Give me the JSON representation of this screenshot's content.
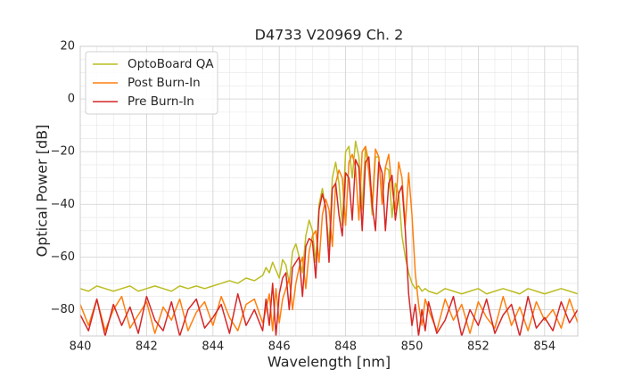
{
  "chart_data": {
    "type": "line",
    "title": "D4733 V20969 Ch. 2",
    "xlabel": "Wavelength [nm]",
    "ylabel": "Optical Power [dB]",
    "xlim": [
      840,
      855
    ],
    "xticks": [
      840,
      842,
      844,
      846,
      848,
      850,
      852,
      854
    ],
    "ylim": [
      -90,
      20
    ],
    "yticks": [
      -80,
      -60,
      -40,
      -20,
      0,
      20
    ],
    "grid": true,
    "minor_grid": true,
    "legend": "upper left",
    "x": [
      840,
      840.25,
      840.5,
      840.75,
      841,
      841.25,
      841.5,
      841.75,
      842,
      842.25,
      842.5,
      842.75,
      843,
      843.25,
      843.5,
      843.75,
      844,
      844.25,
      844.5,
      844.75,
      845,
      845.25,
      845.5,
      845.6,
      845.7,
      845.8,
      845.9,
      846.0,
      846.1,
      846.2,
      846.3,
      846.4,
      846.5,
      846.6,
      846.7,
      846.8,
      846.9,
      847.0,
      847.1,
      847.2,
      847.3,
      847.4,
      847.5,
      847.6,
      847.7,
      847.8,
      847.9,
      848.0,
      848.1,
      848.2,
      848.3,
      848.4,
      848.5,
      848.6,
      848.7,
      848.8,
      848.9,
      849.0,
      849.1,
      849.2,
      849.3,
      849.4,
      849.5,
      849.6,
      849.7,
      849.8,
      849.9,
      850.0,
      850.1,
      850.2,
      850.3,
      850.4,
      850.5,
      850.75,
      851,
      851.25,
      851.5,
      851.75,
      852,
      852.25,
      852.5,
      852.75,
      853,
      853.25,
      853.5,
      853.75,
      854,
      854.25,
      854.5,
      854.75,
      855
    ],
    "series": [
      {
        "name": "OptoBoard QA",
        "color": "#bcbd22",
        "values": [
          -72,
          -73,
          -71,
          -72,
          -73,
          -72,
          -71,
          -73,
          -72,
          -71,
          -72,
          -73,
          -71,
          -72,
          -71,
          -72,
          -71,
          -70,
          -69,
          -70,
          -68,
          -69,
          -67,
          -64,
          -66,
          -62,
          -65,
          -68,
          -61,
          -63,
          -70,
          -58,
          -55,
          -60,
          -66,
          -52,
          -46,
          -50,
          -62,
          -40,
          -34,
          -42,
          -56,
          -30,
          -24,
          -32,
          -48,
          -20,
          -18,
          -30,
          -16,
          -22,
          -42,
          -18,
          -24,
          -44,
          -22,
          -22,
          -38,
          -26,
          -27,
          -45,
          -32,
          -36,
          -52,
          -60,
          -66,
          -70,
          -72,
          -71,
          -73,
          -72,
          -73,
          -74,
          -72,
          -73,
          -74,
          -73,
          -72,
          -74,
          -73,
          -72,
          -73,
          -74,
          -72,
          -73,
          -74,
          -73,
          -72,
          -73,
          -74
        ]
      },
      {
        "name": "Post Burn-In",
        "color": "#ff7f0e",
        "values": [
          -78,
          -86,
          -76,
          -88,
          -80,
          -75,
          -87,
          -82,
          -77,
          -89,
          -79,
          -84,
          -76,
          -88,
          -81,
          -77,
          -86,
          -75,
          -83,
          -88,
          -78,
          -76,
          -85,
          -80,
          -74,
          -88,
          -72,
          -85,
          -76,
          -72,
          -68,
          -80,
          -70,
          -64,
          -60,
          -72,
          -58,
          -52,
          -50,
          -62,
          -44,
          -38,
          -42,
          -56,
          -32,
          -27,
          -30,
          -48,
          -24,
          -21,
          -26,
          -46,
          -20,
          -18,
          -28,
          -42,
          -19,
          -22,
          -40,
          -26,
          -21,
          -34,
          -42,
          -24,
          -30,
          -48,
          -28,
          -44,
          -66,
          -78,
          -86,
          -76,
          -80,
          -88,
          -76,
          -84,
          -78,
          -89,
          -77,
          -83,
          -87,
          -75,
          -86,
          -79,
          -88,
          -77,
          -84,
          -80,
          -87,
          -76,
          -85
        ]
      },
      {
        "name": "Pre Burn-In",
        "color": "#d62728",
        "values": [
          -82,
          -88,
          -76,
          -90,
          -78,
          -86,
          -79,
          -89,
          -75,
          -84,
          -88,
          -77,
          -90,
          -80,
          -76,
          -87,
          -83,
          -78,
          -89,
          -74,
          -86,
          -80,
          -88,
          -76,
          -86,
          -70,
          -90,
          -74,
          -68,
          -66,
          -80,
          -64,
          -62,
          -60,
          -75,
          -56,
          -53,
          -54,
          -68,
          -42,
          -36,
          -41,
          -62,
          -34,
          -32,
          -44,
          -52,
          -28,
          -30,
          -46,
          -23,
          -26,
          -50,
          -24,
          -22,
          -40,
          -50,
          -24,
          -28,
          -50,
          -32,
          -29,
          -46,
          -36,
          -33,
          -50,
          -74,
          -86,
          -78,
          -90,
          -80,
          -88,
          -77,
          -89,
          -84,
          -75,
          -90,
          -80,
          -86,
          -76,
          -89,
          -82,
          -78,
          -90,
          -75,
          -87,
          -83,
          -88,
          -77,
          -85,
          -80
        ]
      }
    ]
  }
}
